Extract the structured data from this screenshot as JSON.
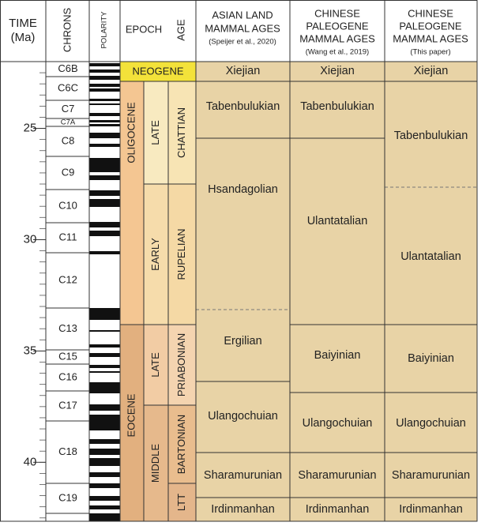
{
  "header": {
    "time": [
      "TIME",
      "(Ma)"
    ],
    "chrons": "CHRONS",
    "polarity": "POLARITY",
    "epoch": "EPOCH",
    "age": "AGE",
    "asian": [
      "ASIAN LAND",
      "MAMMAL AGES",
      "(Speijer et al., 2020)"
    ],
    "wang": [
      "CHINESE",
      "PALEOGENE",
      "MAMMAL AGES",
      "(Wang et al., 2019)"
    ],
    "this": [
      "CHINESE",
      "PALEOGENE",
      "MAMMAL AGES",
      "(This paper)"
    ]
  },
  "time_axis": {
    "ylim": [
      22,
      42.65
    ],
    "yticks": [
      25,
      30,
      35,
      40
    ]
  },
  "chrons": [
    "C6B",
    "C6C",
    "C7",
    "C7A",
    "C8",
    "C9",
    "C10",
    "C11",
    "C12",
    "C13",
    "C15",
    "C16",
    "C17",
    "C18",
    "C19"
  ],
  "epochs": [
    "NEOGENE",
    "OLIGOCENE",
    "EOCENE"
  ],
  "subepochs": [
    "LATE",
    "EARLY",
    "LATE",
    "MIDDLE"
  ],
  "ages": [
    "CHATTIAN",
    "RUPELIAN",
    "PRIABONIAN",
    "BARTONIAN",
    "LTT"
  ],
  "asian_lma": [
    "Xiejian",
    "Tabenbulukian",
    "Hsandagolian",
    "Ergilian",
    "Ulangochuian",
    "Sharamurunian",
    "Irdinmanhan"
  ],
  "wang_lma": [
    "Xiejian",
    "Tabenbulukian",
    "Ulantatalian",
    "Baiyinian",
    "Ulangochuian",
    "Sharamurunian",
    "Irdinmanhan"
  ],
  "this_lma": [
    "Xiejian",
    "Tabenbulukian",
    "Ulantatalian",
    "Baiyinian",
    "Ulangochuian",
    "Sharamurunian",
    "Irdinmanhan"
  ]
}
